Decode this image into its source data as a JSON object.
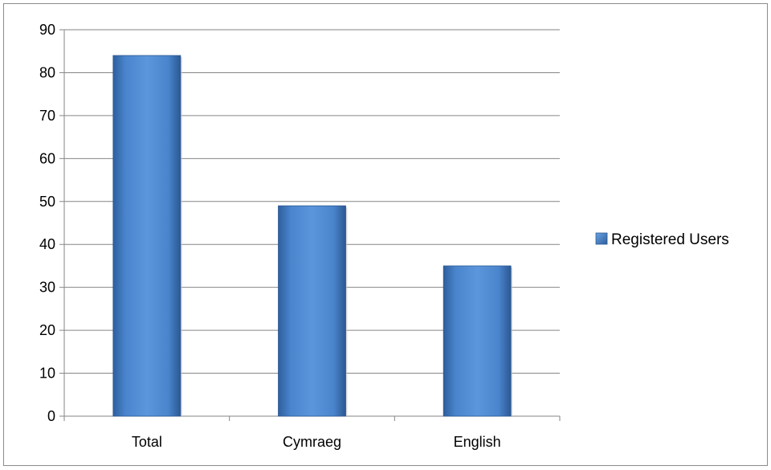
{
  "chart_data": {
    "type": "bar",
    "categories": [
      "Total",
      "Cymraeg",
      "English"
    ],
    "series": [
      {
        "name": "Registered Users",
        "values": [
          84,
          49,
          35
        ],
        "color": "#4f81bd"
      }
    ],
    "yticks": [
      "0",
      "10",
      "20",
      "30",
      "40",
      "50",
      "60",
      "70",
      "80",
      "90"
    ],
    "ylim": [
      0,
      90
    ],
    "title": "",
    "xlabel": "",
    "ylabel": "",
    "grid": true,
    "legend_position": "right"
  }
}
